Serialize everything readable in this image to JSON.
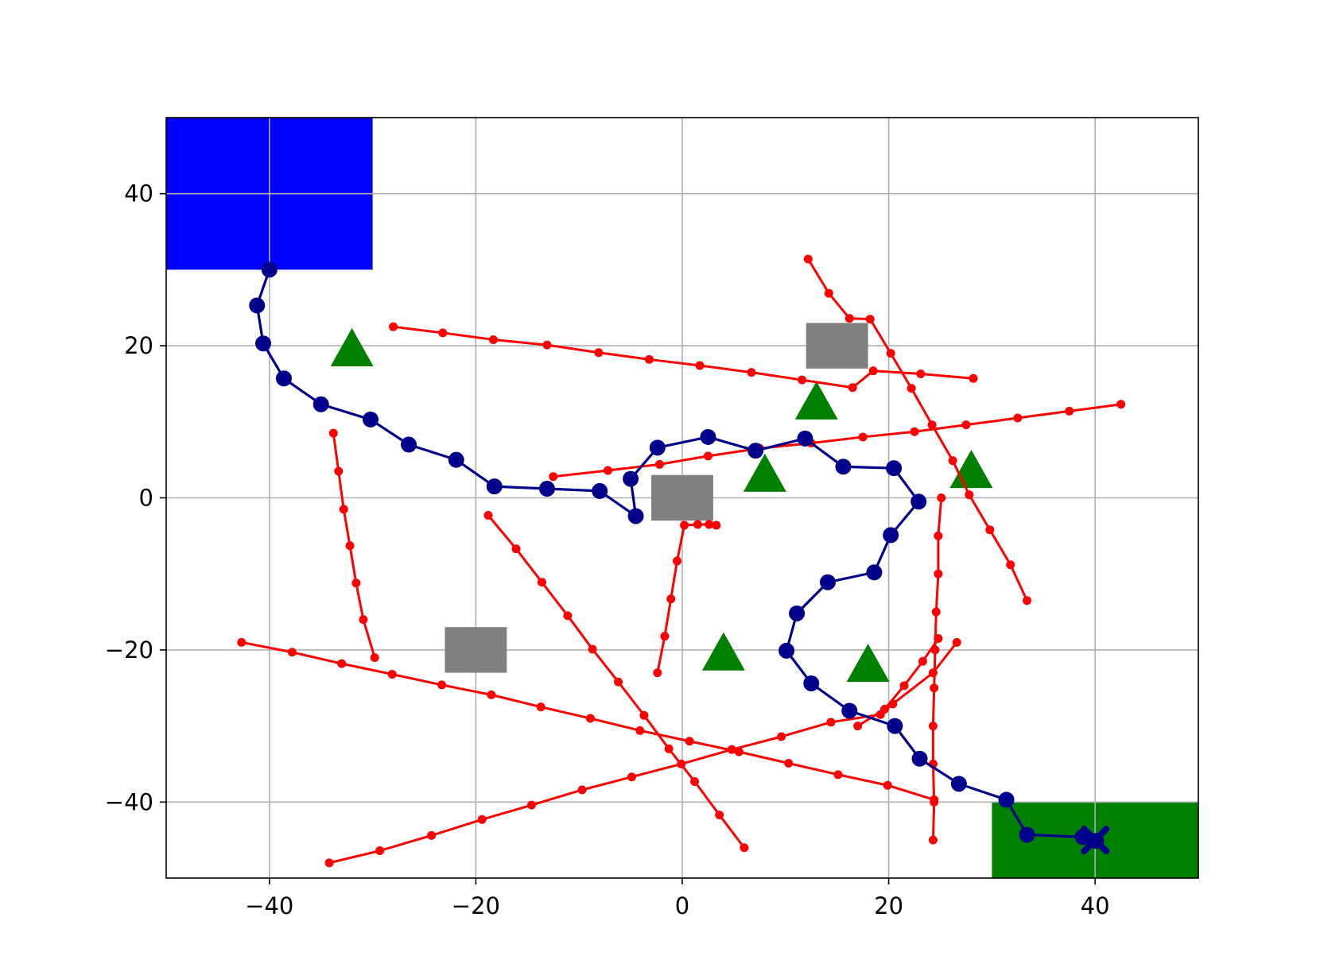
{
  "chart_data": {
    "type": "line",
    "title": "",
    "xlabel": "",
    "ylabel": "",
    "xlim": [
      -50,
      50
    ],
    "ylim": [
      -50,
      50
    ],
    "grid": true,
    "x_ticks": [
      -40,
      -20,
      0,
      20,
      40
    ],
    "y_ticks": [
      40,
      20,
      0,
      -20,
      -40
    ],
    "x_tick_labels": [
      "−40",
      "−20",
      "0",
      "20",
      "40"
    ],
    "y_tick_labels": [
      "40",
      "20",
      "0",
      "−20",
      "−40"
    ],
    "start_region": {
      "x": [
        -50,
        -30
      ],
      "y": [
        30,
        50
      ],
      "color": "#0000ff"
    },
    "goal_region": {
      "x": [
        30,
        50
      ],
      "y": [
        -50,
        -40
      ],
      "color": "#008000"
    },
    "static_obstacles": [
      {
        "x": 15,
        "y": 20,
        "w": 6,
        "h": 6
      },
      {
        "x": 0,
        "y": 0,
        "w": 6,
        "h": 6
      },
      {
        "x": -20,
        "y": -20,
        "w": 6,
        "h": 6
      }
    ],
    "obstacle_color": "#808080",
    "landmarks": [
      {
        "x": -32,
        "y": 19.5
      },
      {
        "x": 13,
        "y": 12.5
      },
      {
        "x": 8,
        "y": 3
      },
      {
        "x": 28,
        "y": 3.5
      },
      {
        "x": 4,
        "y": -20.5
      },
      {
        "x": 18,
        "y": -22
      }
    ],
    "landmark_color": "#008000",
    "path": {
      "color": "#00008b",
      "points": [
        [
          -40,
          30
        ],
        [
          -41.2,
          25.3
        ],
        [
          -40.6,
          20.3
        ],
        [
          -38.6,
          15.7
        ],
        [
          -35,
          12.3
        ],
        [
          -30.2,
          10.3
        ],
        [
          -26.5,
          7
        ],
        [
          -21.9,
          5
        ],
        [
          -18.2,
          1.5
        ],
        [
          -13.1,
          1.2
        ],
        [
          -8,
          0.9
        ],
        [
          -4.5,
          -2.4
        ],
        [
          -5,
          2.5
        ],
        [
          -2.4,
          6.6
        ],
        [
          2.5,
          8
        ],
        [
          7.1,
          6.2
        ],
        [
          11.9,
          7.8
        ],
        [
          15.6,
          4.1
        ],
        [
          20.5,
          3.9
        ],
        [
          22.9,
          -0.5
        ],
        [
          20.2,
          -4.9
        ],
        [
          18.6,
          -9.8
        ],
        [
          14.1,
          -11.1
        ],
        [
          11.1,
          -15.2
        ],
        [
          10.1,
          -20.1
        ],
        [
          12.5,
          -24.4
        ],
        [
          16.2,
          -28
        ],
        [
          20.6,
          -30
        ],
        [
          23,
          -34.3
        ],
        [
          26.8,
          -37.6
        ],
        [
          31.4,
          -39.7
        ],
        [
          33.4,
          -44.3
        ],
        [
          38.8,
          -44.6
        ],
        [
          40.1,
          -45.1
        ]
      ],
      "end": [
        40,
        -45
      ]
    },
    "dynamic_obstacles": {
      "color": "#ff0000",
      "tracks": [
        [
          [
            -28,
            22.5
          ],
          [
            -23.2,
            21.7
          ],
          [
            -18.3,
            20.8
          ],
          [
            -13.1,
            20.1
          ],
          [
            -8.1,
            19.1
          ],
          [
            -3.2,
            18.2
          ],
          [
            1.7,
            17.4
          ],
          [
            6.7,
            16.5
          ],
          [
            11.6,
            15.5
          ],
          [
            16.5,
            14.5
          ],
          [
            18.5,
            16.7
          ],
          [
            23.1,
            16.3
          ],
          [
            28.2,
            15.7
          ]
        ],
        [
          [
            12.2,
            31.4
          ],
          [
            14.2,
            26.9
          ],
          [
            16.2,
            23.6
          ],
          [
            18.2,
            23.5
          ],
          [
            20.2,
            19
          ],
          [
            22.2,
            14.4
          ],
          [
            24.2,
            9.6
          ],
          [
            26.2,
            4.9
          ],
          [
            27.8,
            0.4
          ],
          [
            29.8,
            -4.2
          ],
          [
            31.8,
            -8.8
          ],
          [
            33.4,
            -13.5
          ]
        ],
        [
          [
            -12.5,
            2.8
          ],
          [
            -7.2,
            3.6
          ],
          [
            -2.2,
            4.4
          ],
          [
            2.5,
            5.5
          ],
          [
            7.5,
            6.5
          ],
          [
            12.5,
            7.2
          ],
          [
            17.5,
            8
          ],
          [
            22.5,
            8.7
          ],
          [
            27.5,
            9.6
          ],
          [
            32.5,
            10.5
          ],
          [
            37.5,
            11.4
          ],
          [
            42.5,
            12.3
          ]
        ],
        [
          [
            -33.8,
            8.5
          ],
          [
            -33.3,
            3.5
          ],
          [
            -32.8,
            -1.5
          ],
          [
            -32.2,
            -6.3
          ],
          [
            -31.6,
            -11.2
          ],
          [
            -30.9,
            -16
          ],
          [
            -29.8,
            -21
          ]
        ],
        [
          [
            -18.8,
            -2.3
          ],
          [
            -16.1,
            -6.7
          ],
          [
            -13.6,
            -11.1
          ],
          [
            -11.1,
            -15.5
          ],
          [
            -8.7,
            -19.9
          ],
          [
            -6.2,
            -24.2
          ],
          [
            -3.7,
            -28.6
          ],
          [
            -1.3,
            -33
          ],
          [
            1.2,
            -37.3
          ],
          [
            3.6,
            -41.7
          ],
          [
            6,
            -46
          ]
        ],
        [
          [
            -2.4,
            -23
          ],
          [
            -1.7,
            -18.2
          ],
          [
            -1.1,
            -13.3
          ],
          [
            -0.5,
            -8.3
          ],
          [
            0.2,
            -3.6
          ],
          [
            1.5,
            -3.5
          ],
          [
            2.6,
            -3.5
          ],
          [
            3.3,
            -3.6
          ]
        ],
        [
          [
            -42.7,
            -19
          ],
          [
            -37.8,
            -20.3
          ],
          [
            -33,
            -21.8
          ],
          [
            -28.1,
            -23.2
          ],
          [
            -23.3,
            -24.6
          ],
          [
            -18.5,
            -25.9
          ],
          [
            -13.7,
            -27.5
          ],
          [
            -8.9,
            -29
          ],
          [
            -4.1,
            -30.6
          ],
          [
            0.7,
            -32
          ],
          [
            5.5,
            -33.4
          ],
          [
            10.3,
            -34.9
          ],
          [
            15.1,
            -36.4
          ],
          [
            19.9,
            -37.8
          ],
          [
            24.4,
            -39.7
          ]
        ],
        [
          [
            -34.2,
            -48
          ],
          [
            -29.3,
            -46.4
          ],
          [
            -24.3,
            -44.4
          ],
          [
            -19.4,
            -42.3
          ],
          [
            -14.6,
            -40.4
          ],
          [
            -9.7,
            -38.4
          ],
          [
            -4.9,
            -36.7
          ],
          [
            -0.1,
            -35
          ],
          [
            4.8,
            -33.1
          ],
          [
            9.6,
            -31.4
          ],
          [
            14.4,
            -29.5
          ],
          [
            19.2,
            -28.5
          ],
          [
            20.4,
            -27.1
          ],
          [
            24.3,
            -23
          ],
          [
            26.6,
            -19
          ]
        ],
        [
          [
            25.1,
            0
          ],
          [
            24.8,
            -5
          ],
          [
            24.8,
            -10
          ],
          [
            24.6,
            -15
          ],
          [
            24.5,
            -20
          ],
          [
            24.4,
            -25
          ],
          [
            24.3,
            -30
          ],
          [
            24.3,
            -35
          ],
          [
            24.4,
            -40
          ],
          [
            24.3,
            -45
          ]
        ],
        [
          [
            24.8,
            -18.5
          ],
          [
            23.3,
            -21.5
          ],
          [
            21.5,
            -24.7
          ],
          [
            19.6,
            -27.8
          ],
          [
            17,
            -30
          ]
        ]
      ]
    }
  }
}
